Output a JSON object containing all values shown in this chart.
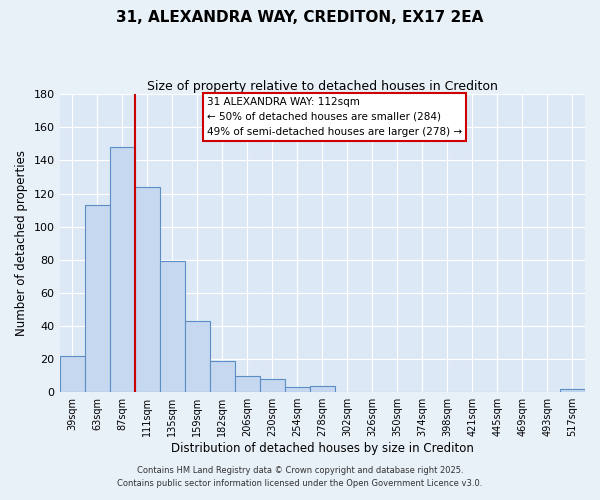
{
  "title": "31, ALEXANDRA WAY, CREDITON, EX17 2EA",
  "subtitle": "Size of property relative to detached houses in Crediton",
  "xlabel": "Distribution of detached houses by size in Crediton",
  "ylabel": "Number of detached properties",
  "bar_labels": [
    "39sqm",
    "63sqm",
    "87sqm",
    "111sqm",
    "135sqm",
    "159sqm",
    "182sqm",
    "206sqm",
    "230sqm",
    "254sqm",
    "278sqm",
    "302sqm",
    "326sqm",
    "350sqm",
    "374sqm",
    "398sqm",
    "421sqm",
    "445sqm",
    "469sqm",
    "493sqm",
    "517sqm"
  ],
  "bar_values": [
    22,
    113,
    148,
    124,
    79,
    43,
    19,
    10,
    8,
    3,
    4,
    0,
    0,
    0,
    0,
    0,
    0,
    0,
    0,
    0,
    2
  ],
  "bar_color": "#c5d8f0",
  "bar_edge_color": "#5b8ec4",
  "vline_color": "#cc0000",
  "ylim": [
    0,
    180
  ],
  "yticks": [
    0,
    20,
    40,
    60,
    80,
    100,
    120,
    140,
    160,
    180
  ],
  "annotation_title": "31 ALEXANDRA WAY: 112sqm",
  "annotation_line1": "← 50% of detached houses are smaller (284)",
  "annotation_line2": "49% of semi-detached houses are larger (278) →",
  "annotation_box_color": "#ffffff",
  "annotation_box_edge": "#cc0000",
  "footer_line1": "Contains HM Land Registry data © Crown copyright and database right 2025.",
  "footer_line2": "Contains public sector information licensed under the Open Government Licence v3.0.",
  "background_color": "#e8f0f8",
  "plot_bg_color": "#dce8f5"
}
